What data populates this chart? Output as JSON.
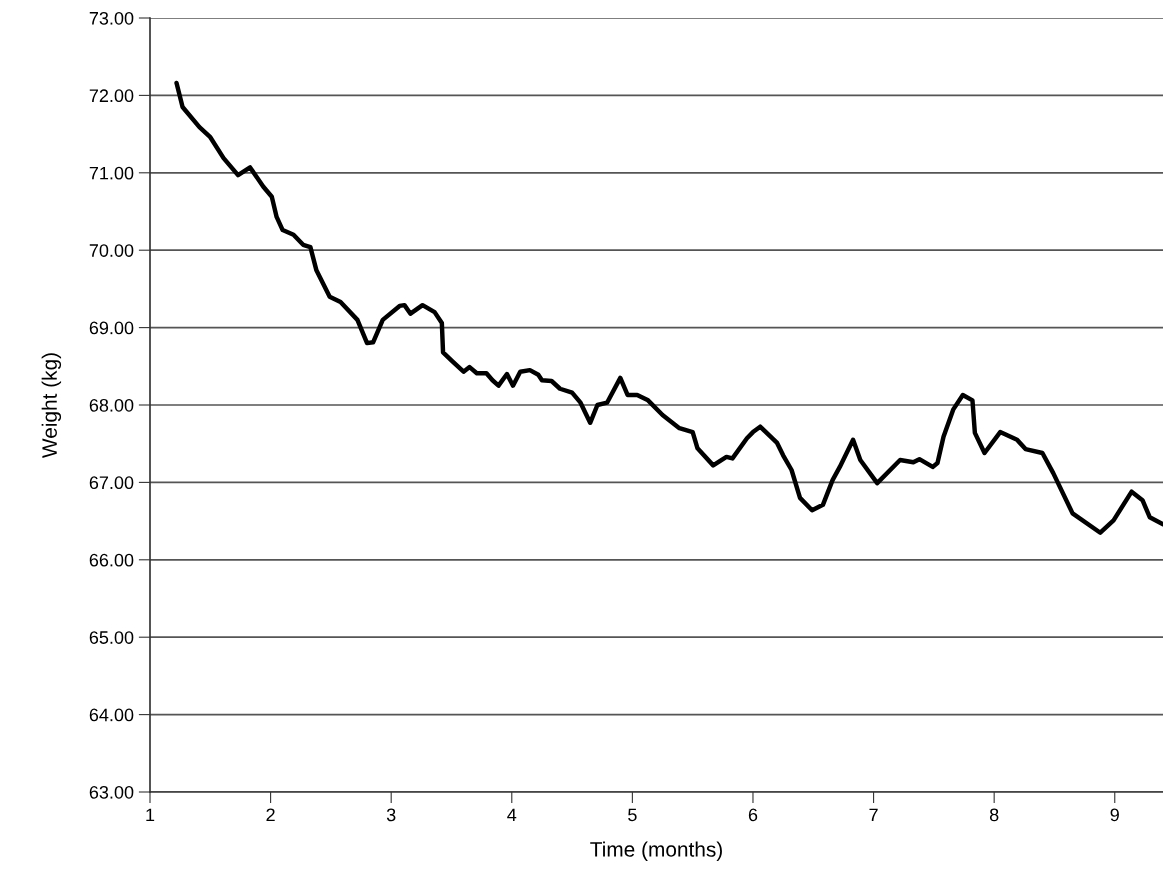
{
  "chart_data": {
    "type": "line",
    "xlabel": "Time (months)",
    "ylabel": "Weight (kg)",
    "x": [
      1.22,
      1.27,
      1.41,
      1.5,
      1.61,
      1.73,
      1.83,
      1.94,
      2.01,
      2.05,
      2.1,
      2.19,
      2.27,
      2.33,
      2.38,
      2.49,
      2.58,
      2.72,
      2.8,
      2.85,
      2.93,
      3.07,
      3.11,
      3.16,
      3.26,
      3.36,
      3.42,
      3.43,
      3.51,
      3.6,
      3.65,
      3.71,
      3.79,
      3.84,
      3.89,
      3.96,
      4.01,
      4.07,
      4.15,
      4.22,
      4.25,
      4.33,
      4.4,
      4.5,
      4.57,
      4.65,
      4.71,
      4.79,
      4.9,
      4.96,
      5.04,
      5.13,
      5.25,
      5.39,
      5.5,
      5.54,
      5.67,
      5.78,
      5.83,
      5.95,
      6.0,
      6.06,
      6.2,
      6.25,
      6.32,
      6.39,
      6.49,
      6.58,
      6.66,
      6.72,
      6.83,
      6.89,
      7.03,
      7.22,
      7.33,
      7.38,
      7.49,
      7.53,
      7.58,
      7.66,
      7.74,
      7.82,
      7.84,
      7.92,
      8.05,
      8.19,
      8.26,
      8.4,
      8.49,
      8.65,
      8.88,
      8.99,
      9.14,
      9.23,
      9.29,
      9.4
    ],
    "series": [
      {
        "color": "#000000",
        "values": [
          72.16,
          71.85,
          71.59,
          71.46,
          71.19,
          70.97,
          71.07,
          70.82,
          70.69,
          70.43,
          70.26,
          70.2,
          70.07,
          70.04,
          69.74,
          69.4,
          69.33,
          69.1,
          68.8,
          68.81,
          69.1,
          69.28,
          69.29,
          69.18,
          69.29,
          69.2,
          69.06,
          68.68,
          68.56,
          68.43,
          68.49,
          68.41,
          68.41,
          68.32,
          68.25,
          68.4,
          68.25,
          68.43,
          68.45,
          68.39,
          68.32,
          68.31,
          68.21,
          68.16,
          68.03,
          67.77,
          68.0,
          68.03,
          68.35,
          68.13,
          68.13,
          68.06,
          67.87,
          67.7,
          67.65,
          67.44,
          67.22,
          67.33,
          67.31,
          67.57,
          67.65,
          67.72,
          67.51,
          67.35,
          67.16,
          66.8,
          66.64,
          66.71,
          67.03,
          67.2,
          67.55,
          67.29,
          66.99,
          67.29,
          67.26,
          67.3,
          67.2,
          67.25,
          67.59,
          67.94,
          68.13,
          68.06,
          67.64,
          67.38,
          67.65,
          67.55,
          67.43,
          67.38,
          67.12,
          66.6,
          66.35,
          66.51,
          66.88,
          66.77,
          66.55,
          66.46
        ]
      }
    ],
    "xlim": [
      1,
      9.4
    ],
    "xticks": [
      1,
      2,
      3,
      4,
      5,
      6,
      7,
      8,
      9
    ],
    "ylim": [
      63,
      73
    ],
    "yticks": [
      {
        "value": 63,
        "label": "63.00"
      },
      {
        "value": 64,
        "label": "64.00"
      },
      {
        "value": 65,
        "label": "65.00"
      },
      {
        "value": 66,
        "label": "66.00"
      },
      {
        "value": 67,
        "label": "67.00"
      },
      {
        "value": 68,
        "label": "68.00"
      },
      {
        "value": 69,
        "label": "69.00"
      },
      {
        "value": 70,
        "label": "70.00"
      },
      {
        "value": 71,
        "label": "71.00"
      },
      {
        "value": 72,
        "label": "72.00"
      },
      {
        "value": 73,
        "label": "73.00"
      }
    ],
    "grid": "y",
    "line_style": "solid",
    "marker": "none"
  }
}
